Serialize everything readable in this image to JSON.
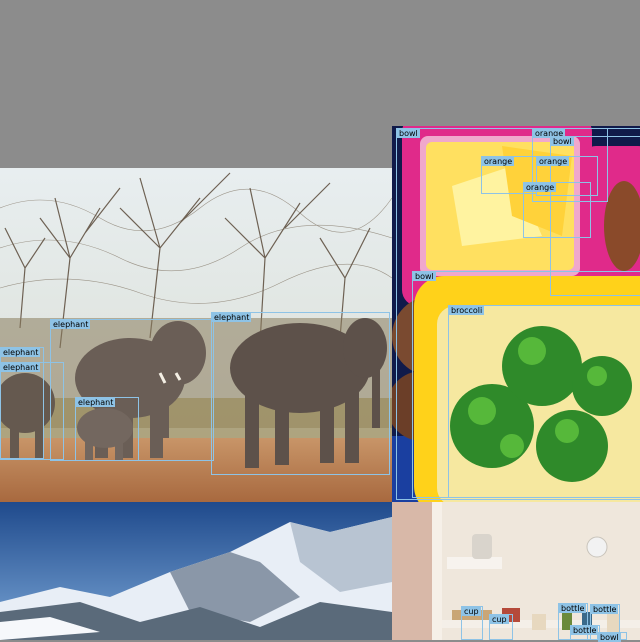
{
  "detections": [
    {
      "label": "bowl"
    },
    {
      "label": "orange"
    },
    {
      "label": "bowl"
    },
    {
      "label": "orange"
    },
    {
      "label": "orange"
    },
    {
      "label": "orange"
    },
    {
      "label": "bowl"
    },
    {
      "label": "broccoli"
    },
    {
      "label": "elephant"
    },
    {
      "label": "elephant"
    },
    {
      "label": "elephant"
    },
    {
      "label": "elephant"
    },
    {
      "label": "elephant"
    },
    {
      "label": "cup"
    },
    {
      "label": "cup"
    },
    {
      "label": "bottle"
    },
    {
      "label": "bottle"
    },
    {
      "label": "bottle"
    },
    {
      "label": "bowl"
    }
  ]
}
